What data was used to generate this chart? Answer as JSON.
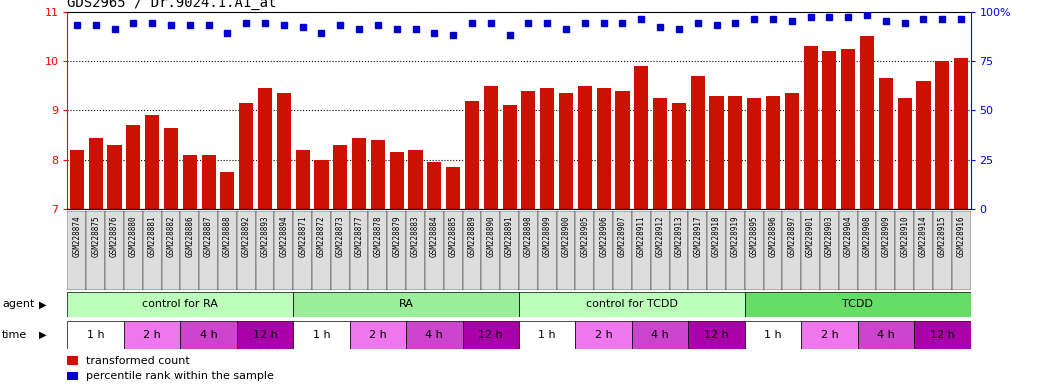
{
  "title": "GDS2965 / Dr.9024.1.A1_at",
  "samples": [
    "GSM228874",
    "GSM228875",
    "GSM228876",
    "GSM228880",
    "GSM228881",
    "GSM228882",
    "GSM228886",
    "GSM228887",
    "GSM228888",
    "GSM228892",
    "GSM228893",
    "GSM228894",
    "GSM228871",
    "GSM228872",
    "GSM228873",
    "GSM228877",
    "GSM228878",
    "GSM228879",
    "GSM228883",
    "GSM228884",
    "GSM228885",
    "GSM228889",
    "GSM228890",
    "GSM228891",
    "GSM228898",
    "GSM228899",
    "GSM228900",
    "GSM228905",
    "GSM228906",
    "GSM228907",
    "GSM228911",
    "GSM228912",
    "GSM228913",
    "GSM228917",
    "GSM228918",
    "GSM228919",
    "GSM228895",
    "GSM228896",
    "GSM228897",
    "GSM228901",
    "GSM228903",
    "GSM228904",
    "GSM228908",
    "GSM228909",
    "GSM228910",
    "GSM228914",
    "GSM228915",
    "GSM228916"
  ],
  "bar_values": [
    8.2,
    8.45,
    8.3,
    8.7,
    8.9,
    8.65,
    8.1,
    8.1,
    7.75,
    9.15,
    9.45,
    9.35,
    8.2,
    8.0,
    8.3,
    8.45,
    8.4,
    8.15,
    8.2,
    7.95,
    7.85,
    9.2,
    9.5,
    9.1,
    9.4,
    9.45,
    9.35,
    9.5,
    9.45,
    9.4,
    9.9,
    9.25,
    9.15,
    9.7,
    9.3,
    9.3,
    9.25,
    9.3,
    9.35,
    10.3,
    10.2,
    10.25,
    10.5,
    9.65,
    9.25,
    9.6,
    10.0,
    10.05
  ],
  "percentile_values": [
    93,
    93,
    91,
    94,
    94,
    93,
    93,
    93,
    89,
    94,
    94,
    93,
    92,
    89,
    93,
    91,
    93,
    91,
    91,
    89,
    88,
    94,
    94,
    88,
    94,
    94,
    91,
    94,
    94,
    94,
    96,
    92,
    91,
    94,
    93,
    94,
    96,
    96,
    95,
    97,
    97,
    97,
    98,
    95,
    94,
    96,
    96,
    96
  ],
  "ylim_left": [
    7,
    11
  ],
  "ylim_right": [
    0,
    100
  ],
  "yticks_left": [
    7,
    8,
    9,
    10,
    11
  ],
  "yticks_right": [
    0,
    25,
    50,
    75,
    100
  ],
  "bar_color": "#CC1100",
  "dot_color": "#0000CC",
  "group_colors": {
    "control for RA": "#BBFFBB",
    "RA": "#99EE99",
    "control for TCDD": "#BBFFBB",
    "TCDD": "#66DD66"
  },
  "groups": [
    {
      "label": "control for RA",
      "start": 0,
      "end": 12
    },
    {
      "label": "RA",
      "start": 12,
      "end": 24
    },
    {
      "label": "control for TCDD",
      "start": 24,
      "end": 36
    },
    {
      "label": "TCDD",
      "start": 36,
      "end": 48
    }
  ],
  "time_colors": [
    "#FFFFFF",
    "#EE77EE",
    "#CC44CC",
    "#AA00AA"
  ],
  "time_labels": [
    "1 h",
    "2 h",
    "4 h",
    "12 h"
  ],
  "agent_label": "agent",
  "time_label": "time",
  "legend_bar": "transformed count",
  "legend_dot": "percentile rank within the sample",
  "bg_color": "#FFFFFF",
  "xtick_bg": "#DDDDDD"
}
